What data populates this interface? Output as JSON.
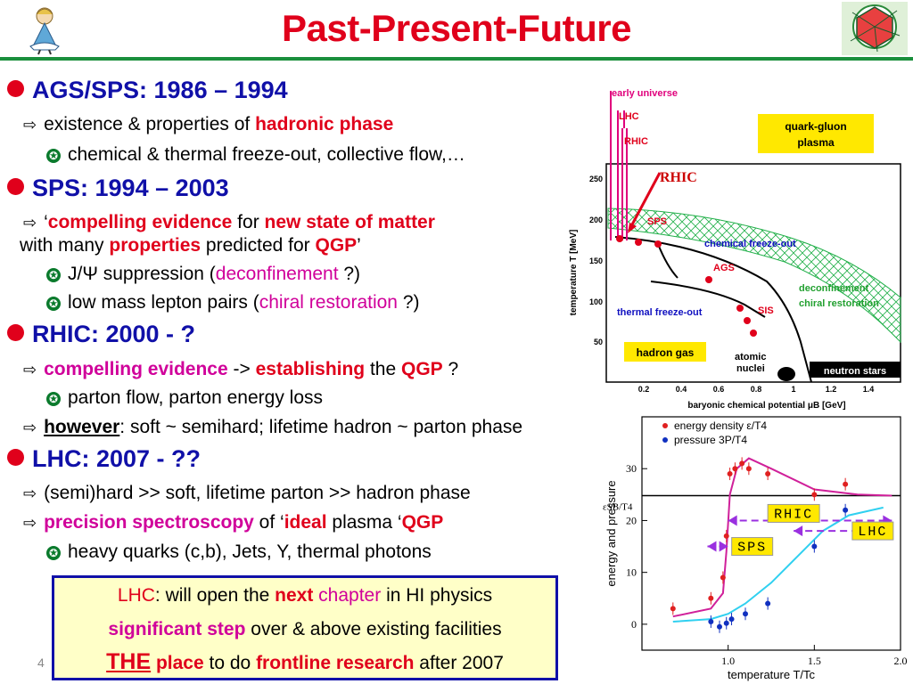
{
  "slide": {
    "title": "Past-Present-Future",
    "page_number": "4"
  },
  "sections": [
    {
      "heading": "AGS/SPS: 1986 – 1994",
      "line1": {
        "a": "existence & properties of ",
        "b": "hadronic phase"
      },
      "line2": "chemical & thermal freeze-out, collective flow,…"
    },
    {
      "heading": "SPS: 1994 – 2003",
      "line1": {
        "a": "‘",
        "b": "compelling evidence",
        "c": " for ",
        "d": "new state of matter"
      },
      "line1_cont": {
        "a": "with many ",
        "b": "properties",
        "c": " predicted for ",
        "d": "QGP",
        "e": "’"
      },
      "sub1": {
        "a": "J/Ψ suppression (",
        "b": "deconfinement",
        "c": " ?)"
      },
      "sub2": {
        "a": "low mass lepton pairs (",
        "b": "chiral restoration",
        "c": " ?)"
      }
    },
    {
      "heading": "RHIC: 2000 - ?",
      "line1": {
        "a": "compelling evidence",
        "b": " -> ",
        "c": "establishing",
        "d": " the ",
        "e": "QGP",
        "f": " ?"
      },
      "sub1": "parton flow, parton energy loss",
      "line2": {
        "a": "however",
        "b": ": soft ~ semihard; lifetime hadron ~ parton phase"
      }
    },
    {
      "heading": "LHC: 2007 - ??",
      "line1": "(semi)hard >> soft, lifetime parton >> hadron phase",
      "line2": {
        "a": "precision spectroscopy",
        "b": " of ‘",
        "c": "ideal",
        "d": " plasma ‘",
        "e": "QGP"
      },
      "sub1": "heavy quarks (c,b), Jets, Y, thermal photons"
    }
  ],
  "box": {
    "line1": {
      "a": "LHC",
      "b": ": will open the ",
      "c": "next",
      "d": "  chapter",
      "e": " in HI physics"
    },
    "line2": {
      "a": "significant step",
      "b": " over &  above existing facilities"
    },
    "line3": {
      "a": "THE",
      "b": " place",
      "c": " to do ",
      "d": "frontline research",
      "e": " after 2007"
    }
  },
  "phase_diagram": {
    "ylabel": "temperature T [MeV]",
    "xlabel": "baryonic chemical potential μB [GeV]",
    "yticks": [
      "250",
      "200",
      "150",
      "100",
      "50"
    ],
    "xticks": [
      "0.2",
      "0.4",
      "0.6",
      "0.8",
      "1",
      "1.2",
      "1.4"
    ],
    "labels": {
      "early_universe": "early universe",
      "lhc": "LHC",
      "rhic": "RHIC",
      "rhic_big": "RHIC",
      "qgp": "quark-gluon",
      "qgp2": "plasma",
      "sps": "SPS",
      "ags": "AGS",
      "sis": "SIS",
      "chem": "chemical freeze-out",
      "thermal": "thermal freeze-out",
      "deconf": "deconfinement",
      "chiral": "chiral restoration",
      "hadron_gas": "hadron gas",
      "atomic": "atomic",
      "nuclei": "nuclei",
      "neutron": "neutron stars"
    },
    "colors": {
      "arrows": "#e0007c",
      "labels_red": "#e0001b",
      "labels_blue": "#1010c0",
      "band": "#22b04a"
    }
  },
  "chart_data": {
    "type": "scatter",
    "xlabel": "temperature T/Tc",
    "ylabel": "energy and pressure",
    "xlim": [
      0.5,
      2.0
    ],
    "ylim": [
      -5,
      40
    ],
    "xticks": [
      "1.0",
      "1.5",
      "2.0"
    ],
    "yticks": [
      "0",
      "10",
      "20",
      "30"
    ],
    "reference_line": {
      "label": "εSB/T4",
      "y": 24.8
    },
    "series": [
      {
        "name": "energy density ε/T4",
        "color": "#e02020",
        "points": [
          [
            0.68,
            3
          ],
          [
            0.9,
            5
          ],
          [
            0.97,
            9
          ],
          [
            0.99,
            17
          ],
          [
            1.01,
            29
          ],
          [
            1.04,
            30
          ],
          [
            1.08,
            31
          ],
          [
            1.12,
            30
          ],
          [
            1.23,
            29
          ],
          [
            1.5,
            25
          ],
          [
            1.68,
            27
          ]
        ]
      },
      {
        "name": "pressure 3P/T4",
        "color": "#1030c0",
        "points": [
          [
            0.9,
            0.5
          ],
          [
            0.95,
            -0.5
          ],
          [
            0.99,
            0.2
          ],
          [
            1.02,
            1
          ],
          [
            1.1,
            2
          ],
          [
            1.23,
            4
          ],
          [
            1.5,
            15
          ],
          [
            1.68,
            22
          ]
        ]
      }
    ],
    "bands": [
      {
        "name": "RHIC",
        "range": [
          1.0,
          1.95
        ]
      },
      {
        "name": "LHC",
        "range": [
          1.38,
          1.88
        ]
      },
      {
        "name": "SPS",
        "range": [
          0.88,
          1.0
        ]
      }
    ]
  }
}
